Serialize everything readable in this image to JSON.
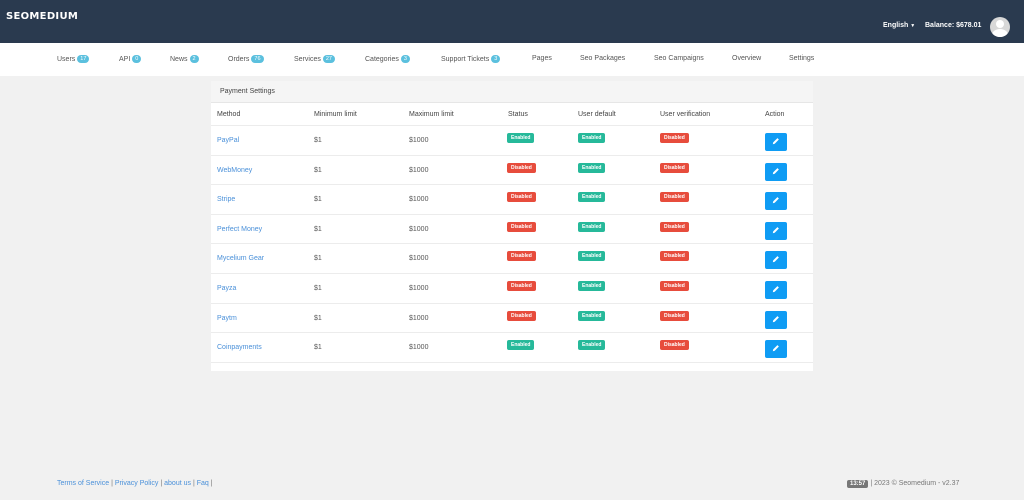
{
  "app": {
    "brand": "SEOMEDIUM",
    "language": "English",
    "balance": "Balance: $678.01"
  },
  "nav": [
    {
      "label": "Users",
      "badge": "17"
    },
    {
      "label": "API",
      "badge": "0"
    },
    {
      "label": "News",
      "badge": "2"
    },
    {
      "label": "Orders",
      "badge": "76"
    },
    {
      "label": "Services",
      "badge": "27"
    },
    {
      "label": "Categories",
      "badge": "3"
    },
    {
      "label": "Support Tickets",
      "badge": "3"
    },
    {
      "label": "Pages",
      "badge": ""
    },
    {
      "label": "Seo Packages",
      "badge": ""
    },
    {
      "label": "Seo Campaigns",
      "badge": ""
    },
    {
      "label": "Overview",
      "badge": ""
    },
    {
      "label": "Settings",
      "badge": ""
    }
  ],
  "panel": {
    "title": "Payment Settings",
    "columns": [
      "Method",
      "Minimum limit",
      "Maximum limit",
      "Status",
      "User default",
      "User verification",
      "Action"
    ],
    "rows": [
      {
        "method": "PayPal",
        "min": "$1",
        "max": "$1000",
        "status": "Enabled",
        "user_default": "Enabled",
        "verification": "Disabled"
      },
      {
        "method": "WebMoney",
        "min": "$1",
        "max": "$1000",
        "status": "Disabled",
        "user_default": "Enabled",
        "verification": "Disabled"
      },
      {
        "method": "Stripe",
        "min": "$1",
        "max": "$1000",
        "status": "Disabled",
        "user_default": "Enabled",
        "verification": "Disabled"
      },
      {
        "method": "Perfect Money",
        "min": "$1",
        "max": "$1000",
        "status": "Disabled",
        "user_default": "Enabled",
        "verification": "Disabled"
      },
      {
        "method": "Mycelium Gear",
        "min": "$1",
        "max": "$1000",
        "status": "Disabled",
        "user_default": "Enabled",
        "verification": "Disabled"
      },
      {
        "method": "Payza",
        "min": "$1",
        "max": "$1000",
        "status": "Disabled",
        "user_default": "Enabled",
        "verification": "Disabled"
      },
      {
        "method": "Paytm",
        "min": "$1",
        "max": "$1000",
        "status": "Disabled",
        "user_default": "Enabled",
        "verification": "Disabled"
      },
      {
        "method": "Coinpayments",
        "min": "$1",
        "max": "$1000",
        "status": "Enabled",
        "user_default": "Enabled",
        "verification": "Disabled"
      }
    ],
    "edit_icon": "pencil-icon"
  },
  "footer": {
    "links": [
      "Terms of Service",
      "Privacy Policy",
      "about us",
      "Faq"
    ],
    "time": "13:57",
    "copyright": "| 2023 © Seomedium - v2.37"
  },
  "colors": {
    "topbar": "#2a3a4f",
    "enabled": "#26b99a",
    "disabled": "#e74c3c",
    "action": "#0f9cf4",
    "badge": "#5bc0de"
  }
}
